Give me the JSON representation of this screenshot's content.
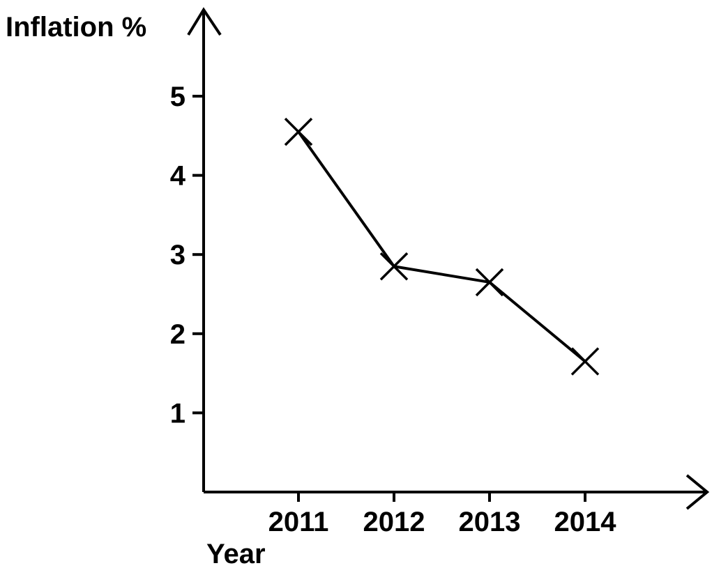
{
  "chart_data": {
    "type": "line",
    "ylabel": "Inflation %",
    "xlabel": "Year",
    "categories": [
      "2011",
      "2012",
      "2013",
      "2014"
    ],
    "series": [
      {
        "values": [
          4.55,
          2.85,
          2.65,
          1.65
        ],
        "marker": "x"
      }
    ],
    "yticks": [
      1,
      2,
      3,
      4,
      5
    ],
    "ylim": [
      0,
      5.9
    ],
    "grid": false,
    "colors": {
      "line": "#000000",
      "axis": "#000000",
      "background": "#ffffff"
    }
  }
}
